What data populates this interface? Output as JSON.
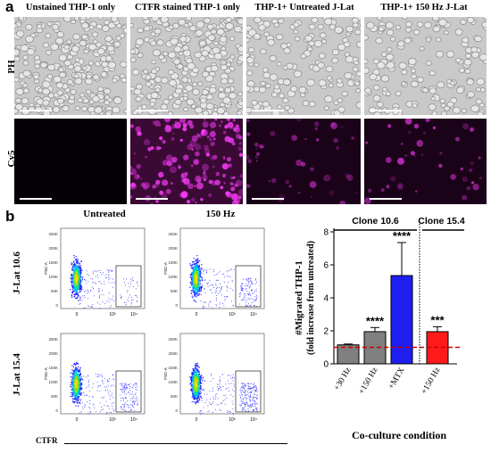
{
  "panel_a": {
    "letter": "a",
    "column_titles": [
      "Unstained THP-1 only",
      "CTFR stained THP-1 only",
      "THP-1+ Untreated J-Lat",
      "THP-1+ 150 Hz J-Lat"
    ],
    "row_labels": [
      "PH",
      "Cy5"
    ],
    "colors": {
      "cy5_bright": "#ff3cff",
      "ph_bg": "#c9c9c9"
    }
  },
  "panel_b": {
    "letter": "b",
    "flow": {
      "column_titles": [
        "Untreated",
        "150 Hz"
      ],
      "row_labels": [
        "J-Lat 10.6",
        "J-Lat 15.4"
      ],
      "y_ticks": [
        "250K",
        "200K",
        "150K",
        "100K",
        "50K",
        "0"
      ],
      "y_axis_label": "FSC-A",
      "x_ticks": [
        "0",
        "10³",
        "10⁴"
      ],
      "x_axis_label": "CTFR"
    }
  },
  "chart_data": {
    "type": "bar",
    "categories": [
      "+30 Hz",
      "+150 Hz",
      "+MTX",
      "+150 Hz"
    ],
    "values": [
      1.15,
      1.95,
      5.35,
      1.95
    ],
    "errors": [
      0.05,
      0.25,
      2.0,
      0.3
    ],
    "bar_colors": [
      "#808080",
      "#808080",
      "#1e1ef0",
      "#ff1a1a"
    ],
    "significance": [
      "",
      "****",
      "****",
      "***"
    ],
    "groups": [
      {
        "label": "Clone 10.6",
        "categories": [
          0,
          1,
          2
        ]
      },
      {
        "label": "Clone 15.4",
        "categories": [
          3
        ]
      }
    ],
    "ylabel": "#Migrated THP-1",
    "ylabel2": "(fold increase from untreated)",
    "xlabel": "Co-culture condition",
    "ylim": [
      0,
      8
    ],
    "yticks": [
      0,
      2,
      4,
      6,
      8
    ],
    "reference_line": 1,
    "reference_color": "#cc0000"
  }
}
